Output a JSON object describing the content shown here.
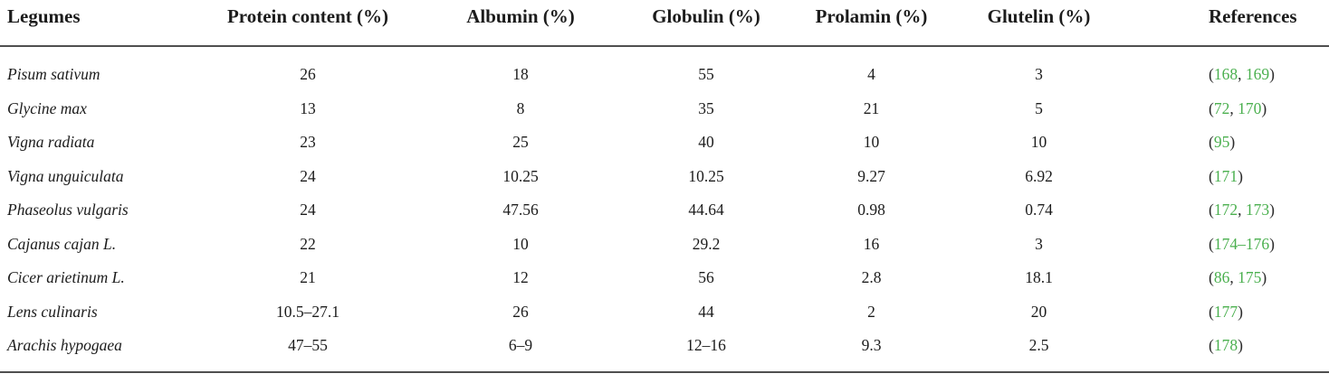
{
  "colors": {
    "text": "#1c1c1c",
    "rule_gray": "#4f4f4f",
    "reference_link_green": "#4bb04f"
  },
  "table": {
    "columns": [
      {
        "label": "Legumes",
        "align": "left"
      },
      {
        "label": "Protein content (%)",
        "align": "center"
      },
      {
        "label": "Albumin (%)",
        "align": "center"
      },
      {
        "label": "Globulin (%)",
        "align": "center"
      },
      {
        "label": "Prolamin (%)",
        "align": "center"
      },
      {
        "label": "Glutelin (%)",
        "align": "center"
      },
      {
        "label": "References",
        "align": "left"
      }
    ],
    "rows": [
      {
        "legume": "Pisum sativum",
        "values": [
          "26",
          "18",
          "55",
          "4",
          "3"
        ],
        "references": [
          {
            "text": "168",
            "link": true
          },
          {
            "text": ", ",
            "link": false
          },
          {
            "text": "169",
            "link": true
          }
        ]
      },
      {
        "legume": "Glycine max",
        "values": [
          "13",
          "8",
          "35",
          "21",
          "5"
        ],
        "references": [
          {
            "text": "72",
            "link": true
          },
          {
            "text": ", ",
            "link": false
          },
          {
            "text": "170",
            "link": true
          }
        ]
      },
      {
        "legume": "Vigna radiata",
        "values": [
          "23",
          "25",
          "40",
          "10",
          "10"
        ],
        "references": [
          {
            "text": "95",
            "link": true
          }
        ]
      },
      {
        "legume": "Vigna unguiculata",
        "values": [
          "24",
          "10.25",
          "10.25",
          "9.27",
          "6.92"
        ],
        "references": [
          {
            "text": "171",
            "link": true
          }
        ]
      },
      {
        "legume": "Phaseolus vulgaris",
        "values": [
          "24",
          "47.56",
          "44.64",
          "0.98",
          "0.74"
        ],
        "references": [
          {
            "text": "172",
            "link": true
          },
          {
            "text": ", ",
            "link": false
          },
          {
            "text": "173",
            "link": true
          }
        ]
      },
      {
        "legume": "Cajanus cajan L.",
        "values": [
          "22",
          "10",
          "29.2",
          "16",
          "3"
        ],
        "references": [
          {
            "text": "174–176",
            "link": true
          }
        ]
      },
      {
        "legume": "Cicer arietinum L.",
        "values": [
          "21",
          "12",
          "56",
          "2.8",
          "18.1"
        ],
        "references": [
          {
            "text": "86",
            "link": true
          },
          {
            "text": ", ",
            "link": false
          },
          {
            "text": "175",
            "link": true
          }
        ]
      },
      {
        "legume": "Lens culinaris",
        "values": [
          "10.5–27.1",
          "26",
          "44",
          "2",
          "20"
        ],
        "references": [
          {
            "text": "177",
            "link": true
          }
        ]
      },
      {
        "legume": "Arachis hypogaea",
        "values": [
          "47–55",
          "6–9",
          "12–16",
          "9.3",
          "2.5"
        ],
        "references": [
          {
            "text": "178",
            "link": true
          }
        ]
      }
    ]
  }
}
